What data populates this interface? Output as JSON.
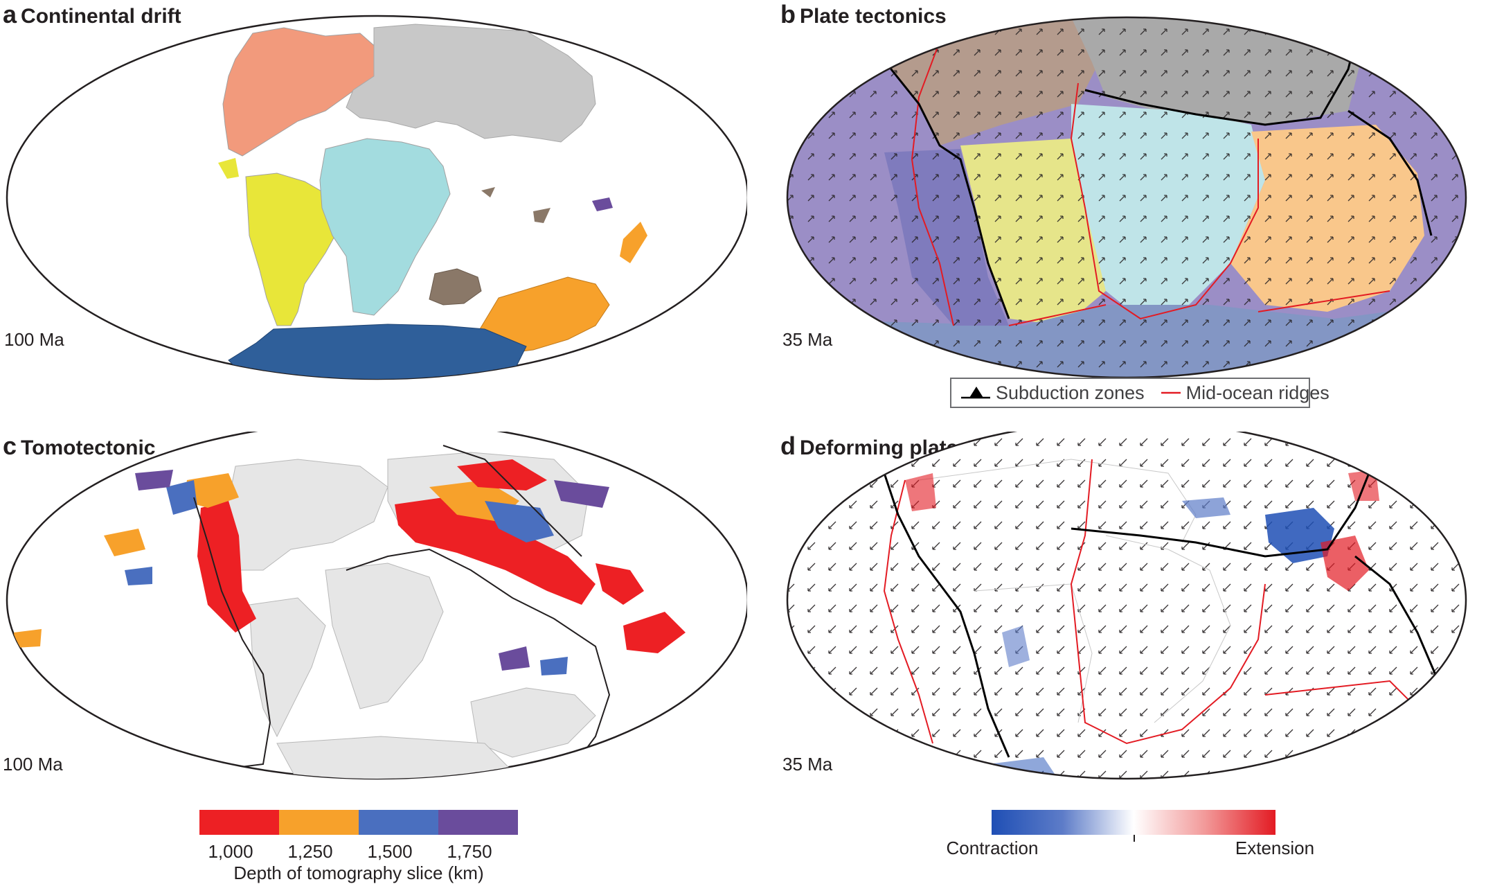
{
  "panels": {
    "a": {
      "letter": "a",
      "title": "Continental drift",
      "age": "100 Ma"
    },
    "b": {
      "letter": "b",
      "title": "Plate tectonics",
      "age": "35 Ma"
    },
    "c": {
      "letter": "c",
      "title": "Tomotectonic",
      "age": "100 Ma"
    },
    "d": {
      "letter": "d",
      "title": "Deforming plates",
      "age": "35 Ma"
    }
  },
  "legend_b": {
    "subduction_label": "Subduction zones",
    "ridge_label": "Mid-ocean ridges",
    "subduction_color": "#000000",
    "ridge_color": "#e31b23"
  },
  "depth_legend": {
    "title": "Depth of tomography slice (km)",
    "ticks": [
      "1,000",
      "1,250",
      "1,500",
      "1,750"
    ],
    "colors": [
      "#ed2024",
      "#f7a12b",
      "#4a6fbf",
      "#6a4c9c"
    ]
  },
  "strain_legend": {
    "left_label": "Contraction",
    "right_label": "Extension",
    "colors": [
      "#1f4fb5",
      "#ffffff",
      "#e31b23"
    ]
  },
  "continent_colors": {
    "north_america": "#f29a7c",
    "eurasia": "#c8c8c8",
    "africa": "#a3dcdf",
    "south_america": "#e8e639",
    "india": "#8a7868",
    "australia": "#f7a12b",
    "antarctica": "#2f5f9a"
  },
  "plate_colors": {
    "pacific": "#9b8ec6",
    "north_american": "#b49b8d",
    "eurasian": "#a9a9a9",
    "african": "#bfe4e8",
    "south_american": "#e6e58a",
    "indo_australian": "#f9c78b",
    "antarctic": "#8396c4",
    "nazca": "#7f7bbd"
  }
}
